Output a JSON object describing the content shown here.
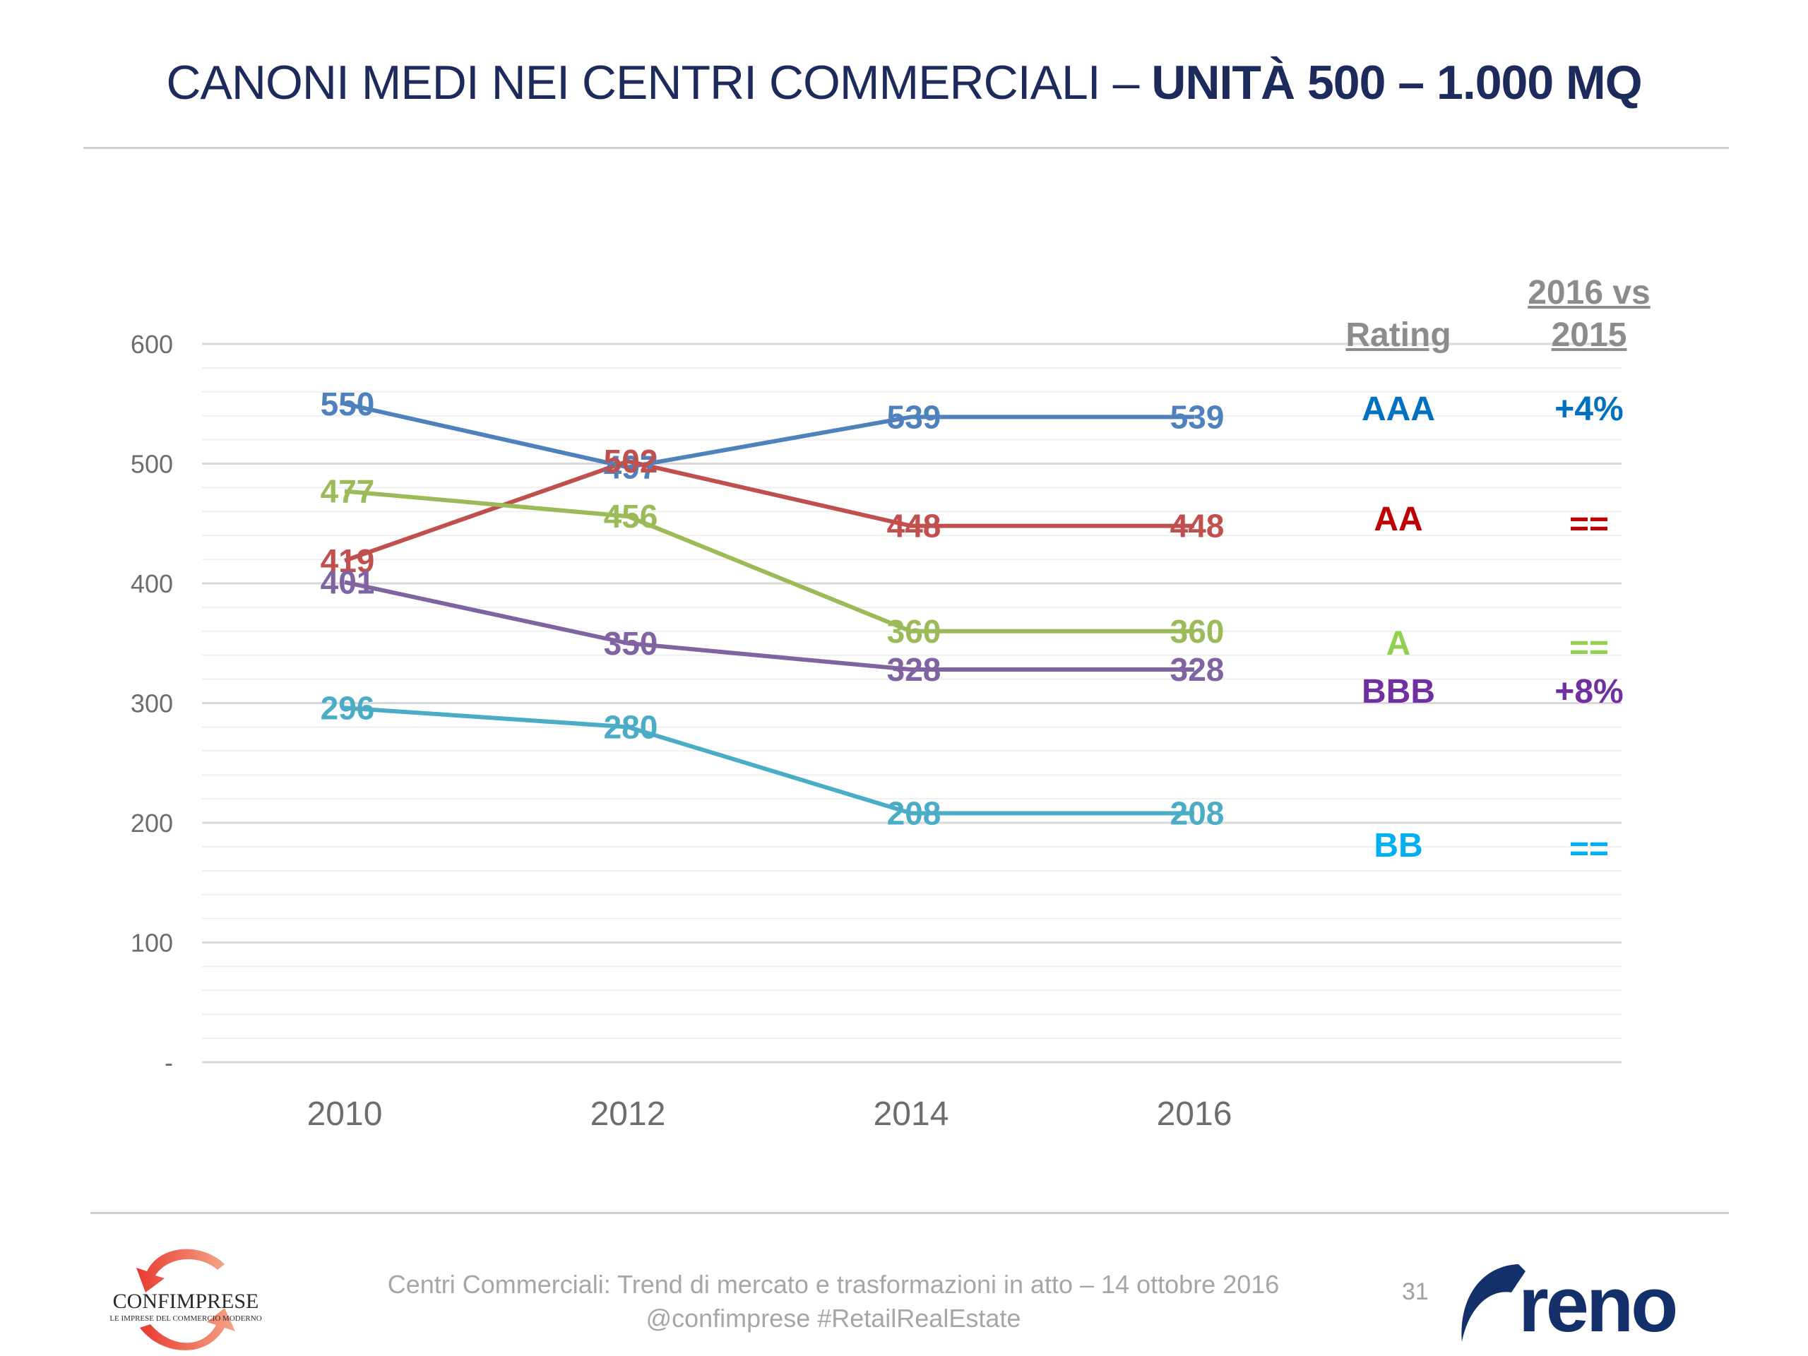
{
  "title": {
    "regular": "CANONI MEDI NEI CENTRI COMMERCIALI – ",
    "bold": "UNITÀ 500 – 1.000 MQ"
  },
  "chart_data": {
    "type": "line",
    "title": "CANONI MEDI NEI CENTRI COMMERCIALI – UNITÀ 500 – 1.000 MQ",
    "xlabel": "",
    "ylabel": "",
    "categories": [
      "2010",
      "2012",
      "2014",
      "2016"
    ],
    "ylim": [
      0,
      600
    ],
    "yticks": [
      0,
      100,
      200,
      300,
      400,
      500,
      600
    ],
    "ytick_labels": [
      "-",
      "100",
      "200",
      "300",
      "400",
      "500",
      "600"
    ],
    "grid": true,
    "minor_grid_step": 20,
    "series": [
      {
        "name": "AAA",
        "color": "#4f81bd",
        "values": [
          550,
          497,
          539,
          539
        ]
      },
      {
        "name": "AA",
        "color": "#c0504d",
        "values": [
          419,
          502,
          448,
          448
        ]
      },
      {
        "name": "A",
        "color": "#9bbb59",
        "values": [
          477,
          456,
          360,
          360
        ]
      },
      {
        "name": "BBB",
        "color": "#8064a2",
        "values": [
          401,
          350,
          328,
          328
        ]
      },
      {
        "name": "BB",
        "color": "#4bacc6",
        "values": [
          296,
          280,
          208,
          208
        ]
      }
    ]
  },
  "rating_panel": {
    "header_rating": "Rating",
    "header_change_line1": "2016 vs",
    "header_change_line2": "2015",
    "rows": [
      {
        "rating": "AAA",
        "change": "+4%",
        "color": "#0070c0"
      },
      {
        "rating": "AA",
        "change": "==",
        "color": "#c00000"
      },
      {
        "rating": "A",
        "change": "==",
        "color": "#92d050"
      },
      {
        "rating": "BBB",
        "change": "+8%",
        "color": "#7030a0"
      },
      {
        "rating": "BB",
        "change": "==",
        "color": "#00b0f0"
      }
    ]
  },
  "footer": {
    "line1": "Centri Commerciali: Trend di mercato e trasformazioni in atto – 14 ottobre 2016",
    "line2": "@confimprese #RetailRealEstate",
    "page_number": "31",
    "logo_left_name": "CONFIMPRESE",
    "logo_left_tagline": "LE IMPRESE DEL COMMERCIO MODERNO",
    "logo_right_name": "reno"
  }
}
